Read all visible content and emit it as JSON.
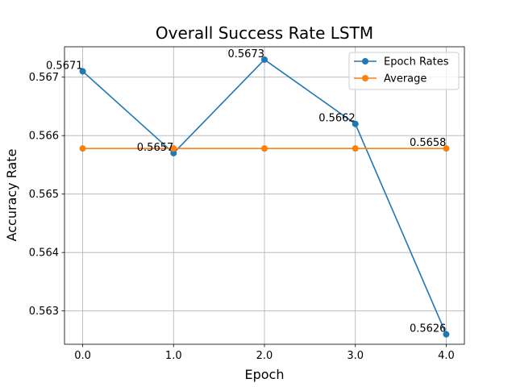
{
  "chart_data": {
    "type": "line",
    "title": "Overall Success Rate LSTM",
    "xlabel": "Epoch",
    "ylabel": "Accuracy Rate",
    "x": [
      0.0,
      1.0,
      2.0,
      3.0,
      4.0
    ],
    "x_tick_labels": [
      "0.0",
      "1.0",
      "2.0",
      "3.0",
      "4.0"
    ],
    "y_tick_values": [
      0.563,
      0.564,
      0.565,
      0.566,
      0.567
    ],
    "y_tick_labels": [
      "0.563",
      "0.564",
      "0.565",
      "0.566",
      "0.567"
    ],
    "xlim": [
      -0.2,
      4.2
    ],
    "ylim": [
      0.56243,
      0.56752
    ],
    "grid": true,
    "legend_position": "top-right",
    "series": [
      {
        "name": "Epoch Rates",
        "color": "#1f77b4",
        "marker": "circle",
        "values": [
          0.5671,
          0.5657,
          0.5673,
          0.5662,
          0.5626
        ],
        "data_labels": [
          "0.5671",
          "0.5657",
          "0.5673",
          "0.5662",
          "0.5626"
        ]
      },
      {
        "name": "Average",
        "color": "#ff7f0e",
        "marker": "circle",
        "values": [
          0.56578,
          0.56578,
          0.56578,
          0.56578,
          0.56578
        ],
        "data_labels": [
          "0.5658"
        ]
      }
    ]
  }
}
